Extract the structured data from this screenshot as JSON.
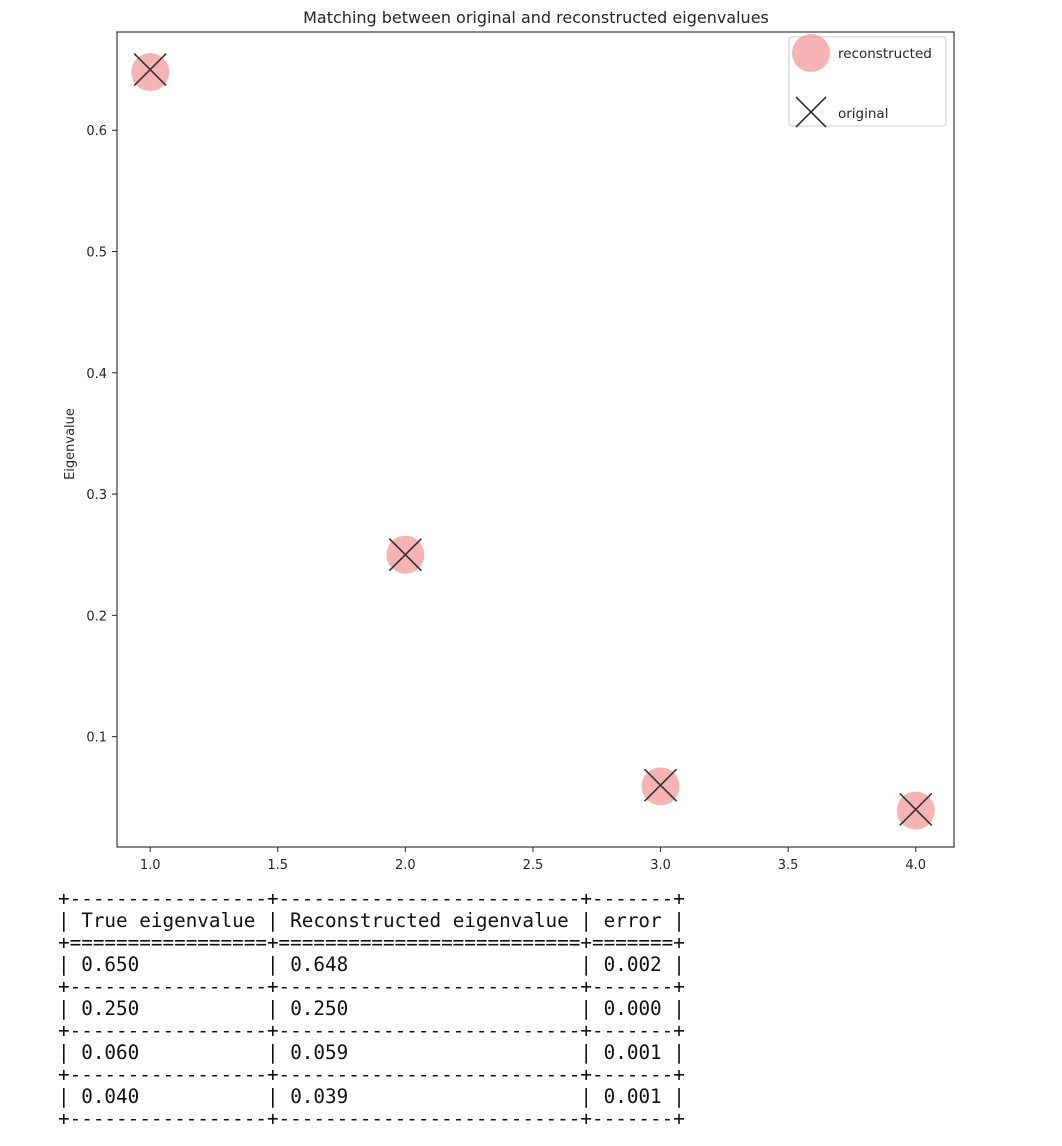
{
  "chart_data": {
    "type": "scatter",
    "title": "Matching between original and reconstructed eigenvalues",
    "xlabel": "",
    "ylabel": "Eigenvalue",
    "xlim": [
      0.87,
      4.15
    ],
    "ylim": [
      0.009,
      0.681
    ],
    "xticks": [
      "1.0",
      "1.5",
      "2.0",
      "2.5",
      "3.0",
      "3.5",
      "4.0"
    ],
    "yticks": [
      "0.1",
      "0.2",
      "0.3",
      "0.4",
      "0.5",
      "0.6"
    ],
    "grid": false,
    "legend_position": "top-right",
    "series": [
      {
        "name": "reconstructed",
        "marker": "circle",
        "color": "#f08080",
        "x": [
          1,
          2,
          3,
          4
        ],
        "y": [
          0.648,
          0.25,
          0.059,
          0.039
        ]
      },
      {
        "name": "original",
        "marker": "x",
        "color": "#333333",
        "x": [
          1,
          2,
          3,
          4
        ],
        "y": [
          0.65,
          0.25,
          0.06,
          0.04
        ]
      }
    ]
  },
  "table": {
    "headers": [
      "True eigenvalue",
      "Reconstructed eigenvalue",
      "error"
    ],
    "rows": [
      [
        "0.650",
        "0.648",
        "0.002"
      ],
      [
        "0.250",
        "0.250",
        "0.000"
      ],
      [
        "0.060",
        "0.059",
        "0.001"
      ],
      [
        "0.040",
        "0.039",
        "0.001"
      ]
    ]
  }
}
